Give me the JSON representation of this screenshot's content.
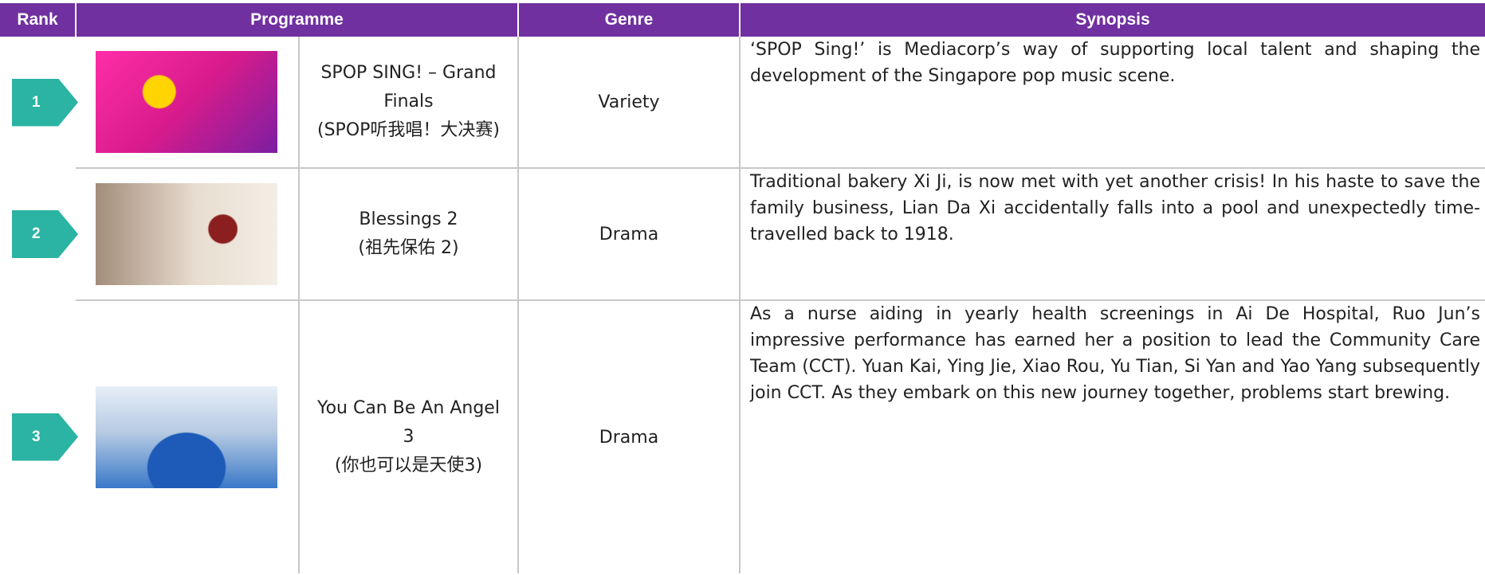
{
  "table": {
    "header": [
      "Rank",
      "Programme",
      "Genre",
      "Synopsis"
    ],
    "rows": [
      {
        "rank": "1",
        "programme": [
          "SPOP SING! – Grand Finals",
          "(SPOP听我唱！大决赛)"
        ],
        "genre": "Variety",
        "synopsis": "‘SPOP Sing!’ is Mediacorp’s way of supporting local talent and shaping the development of the Singapore pop music scene."
      },
      {
        "rank": "2",
        "programme": [
          "Blessings 2",
          "(祖先保佑 2)"
        ],
        "genre": "Drama",
        "synopsis": "Traditional bakery Xi Ji, is now met with yet another crisis! In his haste to save the family business, Lian Da Xi accidentally falls into a pool and unexpectedly time-travelled back to 1918."
      },
      {
        "rank": "3",
        "programme": [
          "You Can Be An Angel 3",
          "(你也可以是天使3)"
        ],
        "genre": "Drama",
        "synopsis": "As a nurse aiding in yearly health screenings in Ai De Hospital, Ruo Jun’s impressive performance has earned her a position to lead the Community Care Team (CCT). Yuan Kai, Ying Jie, Xiao Rou, Yu Tian, Si Yan and Yao Yang subsequently join CCT. As they embark on this new journey together, problems start brewing."
      }
    ]
  }
}
